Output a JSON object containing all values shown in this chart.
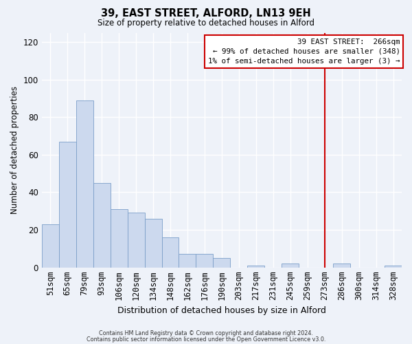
{
  "title": "39, EAST STREET, ALFORD, LN13 9EH",
  "subtitle": "Size of property relative to detached houses in Alford",
  "xlabel": "Distribution of detached houses by size in Alford",
  "ylabel": "Number of detached properties",
  "footer1": "Contains HM Land Registry data © Crown copyright and database right 2024.",
  "footer2": "Contains public sector information licensed under the Open Government Licence v3.0.",
  "bar_labels": [
    "51sqm",
    "65sqm",
    "79sqm",
    "93sqm",
    "106sqm",
    "120sqm",
    "134sqm",
    "148sqm",
    "162sqm",
    "176sqm",
    "190sqm",
    "203sqm",
    "217sqm",
    "231sqm",
    "245sqm",
    "259sqm",
    "273sqm",
    "286sqm",
    "300sqm",
    "314sqm",
    "328sqm"
  ],
  "bar_values": [
    23,
    67,
    89,
    45,
    31,
    29,
    26,
    16,
    7,
    7,
    5,
    0,
    1,
    0,
    2,
    0,
    0,
    2,
    0,
    0,
    1
  ],
  "bar_color": "#ccd9ee",
  "bar_edge_color": "#7a9ec8",
  "ylim": [
    0,
    125
  ],
  "yticks": [
    0,
    20,
    40,
    60,
    80,
    100,
    120
  ],
  "annotation_title": "39 EAST STREET:  266sqm",
  "annotation_line1": "← 99% of detached houses are smaller (348)",
  "annotation_line2": "1% of semi-detached houses are larger (3) →",
  "vline_x_label": "273sqm",
  "annotation_box_facecolor": "#ffffff",
  "annotation_border_color": "#cc0000",
  "vline_color": "#cc0000",
  "background_color": "#eef2f9",
  "grid_color": "#ffffff"
}
